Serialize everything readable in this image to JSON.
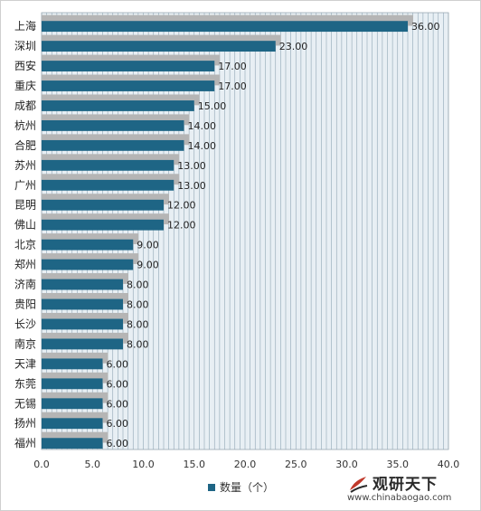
{
  "chart_data": {
    "type": "bar",
    "orientation": "horizontal",
    "categories": [
      "上海",
      "深圳",
      "西安",
      "重庆",
      "成都",
      "杭州",
      "合肥",
      "苏州",
      "广州",
      "昆明",
      "佛山",
      "北京",
      "郑州",
      "济南",
      "贵阳",
      "长沙",
      "南京",
      "天津",
      "东莞",
      "无锡",
      "扬州",
      "福州"
    ],
    "series": [
      {
        "name": "数量（个）",
        "values": [
          36,
          23,
          17,
          17,
          15,
          14,
          14,
          13,
          13,
          12,
          12,
          9,
          9,
          8,
          8,
          8,
          8,
          6,
          6,
          6,
          6,
          6
        ],
        "data_labels": [
          "36.00",
          "23.00",
          "17.00",
          "17.00",
          "15.00",
          "14.00",
          "14.00",
          "13.00",
          "13.00",
          "12.00",
          "12.00",
          "9.00",
          "9.00",
          "8.00",
          "8.00",
          "8.00",
          "8.00",
          "6.00",
          "6.00",
          "6.00",
          "6.00",
          "6.00"
        ]
      }
    ],
    "xlim": [
      0,
      40
    ],
    "x_ticks": [
      "0.0",
      "5.0",
      "10.0",
      "15.0",
      "20.0",
      "25.0",
      "30.0",
      "35.0",
      "40.0"
    ],
    "grid": true,
    "legend_position": "bottom",
    "colors": {
      "bar": "#1e6585",
      "shadow": "#b5b5b5",
      "plot_bg": "#e8eff4",
      "grid": "#8fa6b4"
    }
  },
  "watermark": {
    "name": "观研天下",
    "url": "www.chinabaogao.com"
  }
}
